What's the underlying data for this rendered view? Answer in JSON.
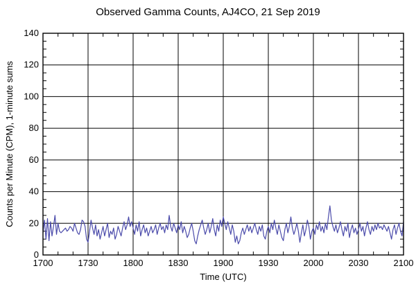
{
  "chart_data": {
    "type": "line",
    "title": "Observed Gamma Counts, AJ4CO, 21 Sep 2019",
    "xlabel": "Time (UTC)",
    "ylabel": "Counts per Minute (CPM), 1-minute sums",
    "x_tick_labels": [
      "1700",
      "1730",
      "1800",
      "1830",
      "1900",
      "1930",
      "2000",
      "2030",
      "2100"
    ],
    "x_tick_minutes": [
      0,
      30,
      60,
      90,
      120,
      150,
      180,
      210,
      240
    ],
    "x_minor_step_minutes": 10,
    "xlim_minutes": [
      0,
      240
    ],
    "y_ticks": [
      0,
      20,
      40,
      60,
      80,
      100,
      120,
      140
    ],
    "y_minor_step": 5,
    "ylim": [
      0,
      140
    ],
    "grid": "on",
    "legend": "none",
    "line_color": "#4a4aaa",
    "axis_color": "#000000",
    "background_color": "#ffffff",
    "series": [
      {
        "name": "gamma-counts-1-minute-sums",
        "x_start_minute": 0,
        "x_step_minutes": 1,
        "values": [
          14,
          22,
          10,
          23,
          9,
          21,
          12,
          18,
          25,
          13,
          20,
          15,
          14,
          15,
          16,
          17,
          15,
          16,
          18,
          17,
          15,
          20,
          17,
          14,
          13,
          16,
          22,
          21,
          18,
          10,
          8,
          15,
          22,
          17,
          13,
          19,
          12,
          16,
          10,
          14,
          18,
          12,
          16,
          20,
          11,
          15,
          13,
          17,
          10,
          13,
          18,
          15,
          12,
          17,
          21,
          16,
          19,
          24,
          18,
          21,
          17,
          13,
          19,
          15,
          21,
          12,
          16,
          19,
          14,
          17,
          12,
          15,
          18,
          14,
          16,
          19,
          13,
          17,
          20,
          16,
          18,
          14,
          19,
          16,
          25,
          18,
          15,
          20,
          17,
          14,
          19,
          16,
          21,
          14,
          18,
          15,
          11,
          13,
          17,
          20,
          15,
          9,
          7,
          12,
          16,
          19,
          22,
          17,
          13,
          16,
          20,
          14,
          18,
          23,
          16,
          12,
          19,
          15,
          22,
          18,
          24,
          20,
          16,
          21,
          17,
          13,
          19,
          15,
          8,
          12,
          7,
          9,
          14,
          17,
          13,
          16,
          19,
          15,
          18,
          14,
          17,
          20,
          16,
          13,
          18,
          15,
          19,
          12,
          10,
          15,
          18,
          14,
          20,
          16,
          22,
          17,
          13,
          19,
          15,
          11,
          9,
          16,
          20,
          14,
          18,
          24,
          17,
          13,
          16,
          20,
          15,
          8,
          14,
          19,
          12,
          16,
          22,
          18,
          10,
          15,
          17,
          13,
          19,
          16,
          21,
          15,
          18,
          14,
          20,
          16,
          24,
          31,
          22,
          18,
          15,
          19,
          14,
          17,
          21,
          16,
          12,
          18,
          15,
          20,
          11,
          16,
          19,
          14,
          17,
          13,
          16,
          20,
          15,
          18,
          12,
          17,
          21,
          16,
          13,
          18,
          15,
          19,
          16,
          20,
          17,
          18,
          16,
          19,
          17,
          15,
          18,
          14,
          10,
          16,
          19,
          13,
          17,
          20,
          15,
          12,
          21
        ]
      }
    ]
  }
}
